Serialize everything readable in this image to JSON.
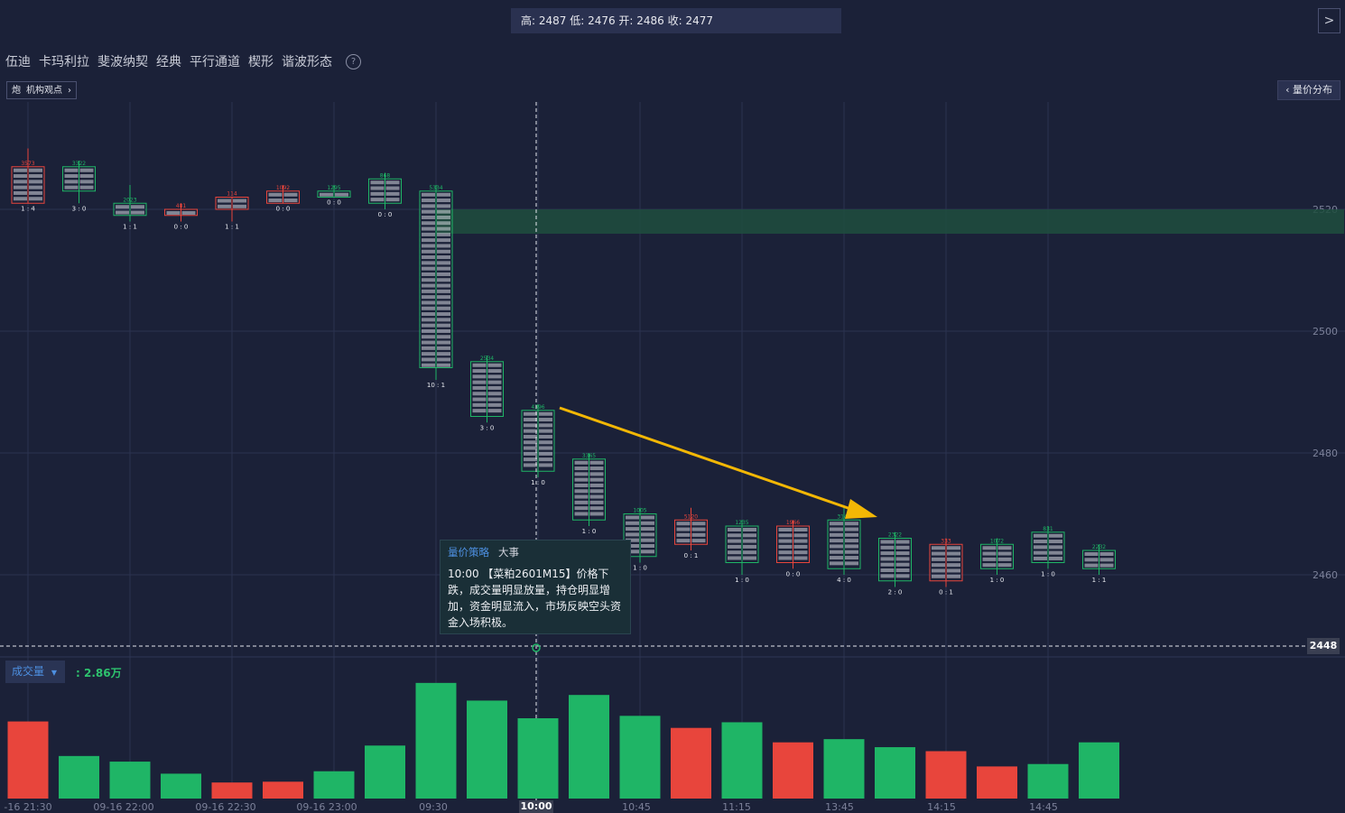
{
  "header": {
    "ohlc_text": "高: 2487 低: 2476 开: 2486 收: 2477"
  },
  "tools": [
    "伍迪",
    "卡玛利拉",
    "斐波纳契",
    "经典",
    "平行通道",
    "楔形",
    "谐波形态"
  ],
  "view_tag": {
    "icon": "炮",
    "label": "机构观点",
    "arrow": "›"
  },
  "volume_profile_button": "量价分布",
  "volume_indicator": {
    "label": "成交量",
    "value": ": 2.86万"
  },
  "event_box": {
    "tabs": [
      "量价策略",
      "大事"
    ],
    "text": "10:00 【菜粕2601M15】价格下跌，成交量明显放量，持仓明显增加，资金明显流入，市场反映空头资金入场积极。"
  },
  "current_price_label": "2448",
  "cursor_time_label": "10:00",
  "colors": {
    "up": "#1fb566",
    "down": "#e8453c",
    "bg": "#1b2138",
    "grid": "#2b3250"
  },
  "chart_data": {
    "type": "bar",
    "title": "",
    "y_axis": {
      "ticks": [
        2520,
        2500,
        2480,
        2460
      ],
      "range": [
        2448,
        2530
      ]
    },
    "x_tick_labels": [
      "-16 21:30",
      "09-16 22:00",
      "09-16 22:30",
      "09-16 23:00",
      "09:30",
      "10:00",
      "10:45",
      "11:15",
      "13:45",
      "14:15",
      "14:45"
    ],
    "candles": [
      {
        "open": 2527,
        "close": 2521,
        "high": 2530,
        "low": 2521,
        "imbalance": "1 : 4",
        "top": "3573"
      },
      {
        "open": 2523,
        "close": 2527,
        "high": 2528,
        "low": 2521,
        "imbalance": "3 : 0",
        "top": "3322"
      },
      {
        "open": 2519,
        "close": 2521,
        "high": 2524,
        "low": 2518,
        "imbalance": "1 : 1",
        "top": "2023"
      },
      {
        "open": 2520,
        "close": 2519,
        "high": 2521,
        "low": 2518,
        "imbalance": "0 : 0",
        "top": "481"
      },
      {
        "open": 2522,
        "close": 2520,
        "high": 2522,
        "low": 2518,
        "imbalance": "1 : 1",
        "top": "114"
      },
      {
        "open": 2523,
        "close": 2521,
        "high": 2524,
        "low": 2521,
        "imbalance": "0 : 0",
        "top": "1092"
      },
      {
        "open": 2522,
        "close": 2523,
        "high": 2524,
        "low": 2522,
        "imbalance": "0 : 0",
        "top": "1295"
      },
      {
        "open": 2521,
        "close": 2525,
        "high": 2526,
        "low": 2520,
        "imbalance": "0 : 0",
        "top": "868"
      },
      {
        "open": 2494,
        "close": 2523,
        "high": 2524,
        "low": 2492,
        "imbalance": "10 : 1",
        "top": "5334"
      },
      {
        "open": 2486,
        "close": 2495,
        "high": 2496,
        "low": 2485,
        "imbalance": "3 : 0",
        "top": "2534"
      },
      {
        "open": 2477,
        "close": 2487,
        "high": 2488,
        "low": 2476,
        "imbalance": "1 : 0",
        "top": "4396"
      },
      {
        "open": 2469,
        "close": 2479,
        "high": 2480,
        "low": 2468,
        "imbalance": "1 : 0",
        "top": "3365"
      },
      {
        "open": 2463,
        "close": 2470,
        "high": 2471,
        "low": 2462,
        "imbalance": "1 : 0",
        "top": "1005"
      },
      {
        "open": 2469,
        "close": 2465,
        "high": 2471,
        "low": 2464,
        "imbalance": "0 : 1",
        "top": "5120"
      },
      {
        "open": 2462,
        "close": 2468,
        "high": 2469,
        "low": 2460,
        "imbalance": "1 : 0",
        "top": "1235"
      },
      {
        "open": 2468,
        "close": 2462,
        "high": 2469,
        "low": 2461,
        "imbalance": "0 : 0",
        "top": "1966"
      },
      {
        "open": 2461,
        "close": 2469,
        "high": 2471,
        "low": 2460,
        "imbalance": "4 : 0",
        "top": "3143"
      },
      {
        "open": 2459,
        "close": 2466,
        "high": 2467,
        "low": 2458,
        "imbalance": "2 : 0",
        "top": "2322"
      },
      {
        "open": 2465,
        "close": 2459,
        "high": 2466,
        "low": 2458,
        "imbalance": "0 : 1",
        "top": "333"
      },
      {
        "open": 2461,
        "close": 2465,
        "high": 2466,
        "low": 2460,
        "imbalance": "1 : 0",
        "top": "1072"
      },
      {
        "open": 2462,
        "close": 2467,
        "high": 2468,
        "low": 2461,
        "imbalance": "1 : 0",
        "top": "831"
      },
      {
        "open": 2461,
        "close": 2464,
        "high": 2465,
        "low": 2460,
        "imbalance": "1 : 1",
        "top": "2232"
      }
    ],
    "volume": [
      {
        "v": 0.96,
        "dir": "down"
      },
      {
        "v": 0.53,
        "dir": "up"
      },
      {
        "v": 0.46,
        "dir": "up"
      },
      {
        "v": 0.31,
        "dir": "up"
      },
      {
        "v": 0.2,
        "dir": "down"
      },
      {
        "v": 0.21,
        "dir": "down"
      },
      {
        "v": 0.34,
        "dir": "up"
      },
      {
        "v": 0.66,
        "dir": "up"
      },
      {
        "v": 1.44,
        "dir": "up"
      },
      {
        "v": 1.22,
        "dir": "up"
      },
      {
        "v": 1.0,
        "dir": "up"
      },
      {
        "v": 1.29,
        "dir": "up"
      },
      {
        "v": 1.03,
        "dir": "up"
      },
      {
        "v": 0.88,
        "dir": "down"
      },
      {
        "v": 0.95,
        "dir": "up"
      },
      {
        "v": 0.7,
        "dir": "down"
      },
      {
        "v": 0.74,
        "dir": "up"
      },
      {
        "v": 0.64,
        "dir": "up"
      },
      {
        "v": 0.59,
        "dir": "down"
      },
      {
        "v": 0.4,
        "dir": "down"
      },
      {
        "v": 0.43,
        "dir": "up"
      },
      {
        "v": 0.7,
        "dir": "up"
      }
    ],
    "highlight_zone": [
      2516,
      2520
    ],
    "current_price": 2448,
    "grid": true
  }
}
